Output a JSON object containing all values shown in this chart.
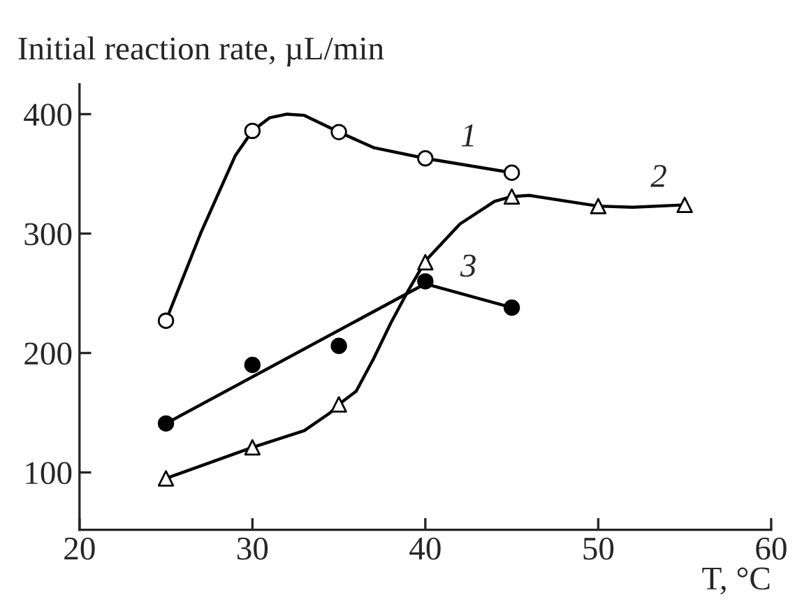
{
  "chart_data": {
    "type": "scatter",
    "ylabel": "Initial reaction rate, µL/min",
    "xlabel": "T, °C",
    "xlim": [
      20,
      60
    ],
    "xticks": [
      20,
      30,
      40,
      50,
      60
    ],
    "ylim": [
      52,
      425
    ],
    "yticks": [
      100,
      200,
      300,
      400
    ],
    "grid": false,
    "legend": false,
    "series": [
      {
        "marker": "circle",
        "color": "#ffffff",
        "x": [
          25,
          30,
          35,
          40,
          45
        ],
        "values": [
          227,
          386,
          385,
          363,
          351
        ]
      },
      {
        "marker": "triangle",
        "color": "#ffffff",
        "x": [
          25,
          30,
          35,
          40,
          45,
          50,
          55
        ],
        "values": [
          95,
          121,
          157,
          276,
          331,
          323,
          324
        ]
      },
      {
        "marker": "circle",
        "color": "#000000",
        "x": [
          25,
          30,
          35,
          40,
          45
        ],
        "values": [
          141,
          190,
          206,
          260,
          238
        ]
      },
      {
        "type": "line",
        "name": "1",
        "color": "#000000",
        "x": [
          25,
          27,
          29,
          30,
          31,
          32,
          33,
          35,
          37,
          40,
          45
        ],
        "values": [
          227,
          300,
          365,
          386,
          397,
          400,
          399,
          385,
          372,
          363,
          351
        ]
      },
      {
        "type": "line",
        "name": "2",
        "color": "#000000",
        "x": [
          25,
          30,
          33,
          34.5,
          35,
          36,
          37,
          38,
          39,
          40,
          42,
          44,
          45,
          46,
          50,
          52,
          55
        ],
        "values": [
          95,
          121,
          135,
          150,
          157,
          168,
          195,
          225,
          252,
          277,
          308,
          327,
          331,
          332,
          323,
          322,
          324
        ]
      },
      {
        "type": "line",
        "name": "3",
        "color": "#000000",
        "x": [
          25,
          40,
          45
        ],
        "values": [
          141,
          258,
          238
        ]
      }
    ]
  }
}
